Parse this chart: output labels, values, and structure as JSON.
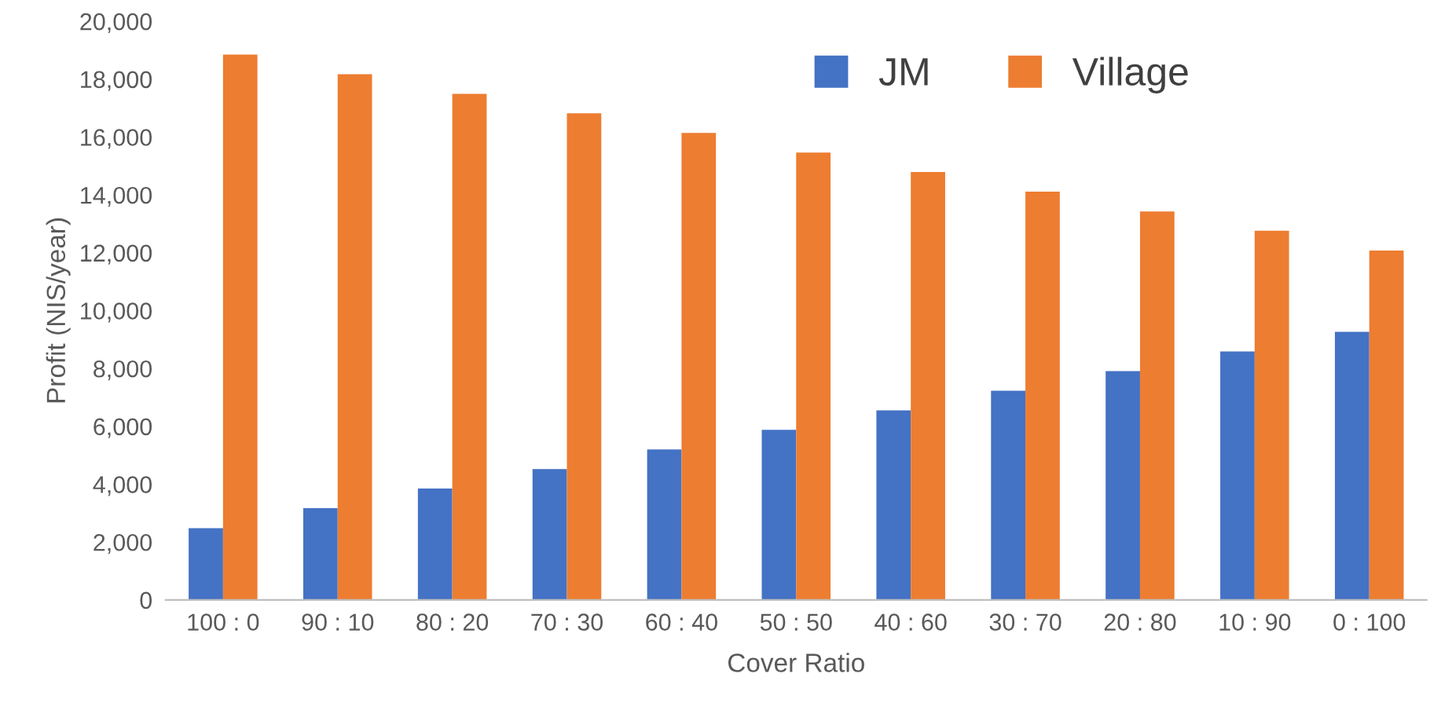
{
  "chart_data": {
    "type": "bar",
    "xlabel": "Cover Ratio",
    "ylabel": "Profit (NIS/year)",
    "categories": [
      "100 : 0",
      "90 : 10",
      "80 : 20",
      "70 : 30",
      "60 : 40",
      "50 : 50",
      "40 : 60",
      "30 : 70",
      "20 : 80",
      "10 : 90",
      "0 : 100"
    ],
    "series": [
      {
        "name": "JM",
        "color": "#4472c4",
        "values": [
          2480,
          3170,
          3850,
          4520,
          5200,
          5880,
          6550,
          7230,
          7910,
          8590,
          9270
        ]
      },
      {
        "name": "Village",
        "color": "#ed7d31",
        "values": [
          18850,
          18170,
          17490,
          16820,
          16140,
          15460,
          14790,
          14110,
          13430,
          12760,
          12080
        ]
      }
    ],
    "ylim": [
      0,
      20000
    ],
    "yticks": [
      {
        "value": 0,
        "label": "0"
      },
      {
        "value": 2000,
        "label": "2,000"
      },
      {
        "value": 4000,
        "label": "4,000"
      },
      {
        "value": 6000,
        "label": "6,000"
      },
      {
        "value": 8000,
        "label": "8,000"
      },
      {
        "value": 10000,
        "label": "10,000"
      },
      {
        "value": 12000,
        "label": "12,000"
      },
      {
        "value": 14000,
        "label": "14,000"
      },
      {
        "value": 16000,
        "label": "16,000"
      },
      {
        "value": 18000,
        "label": "18,000"
      },
      {
        "value": 20000,
        "label": "20,000"
      }
    ],
    "grid": false,
    "legend": "top right"
  }
}
